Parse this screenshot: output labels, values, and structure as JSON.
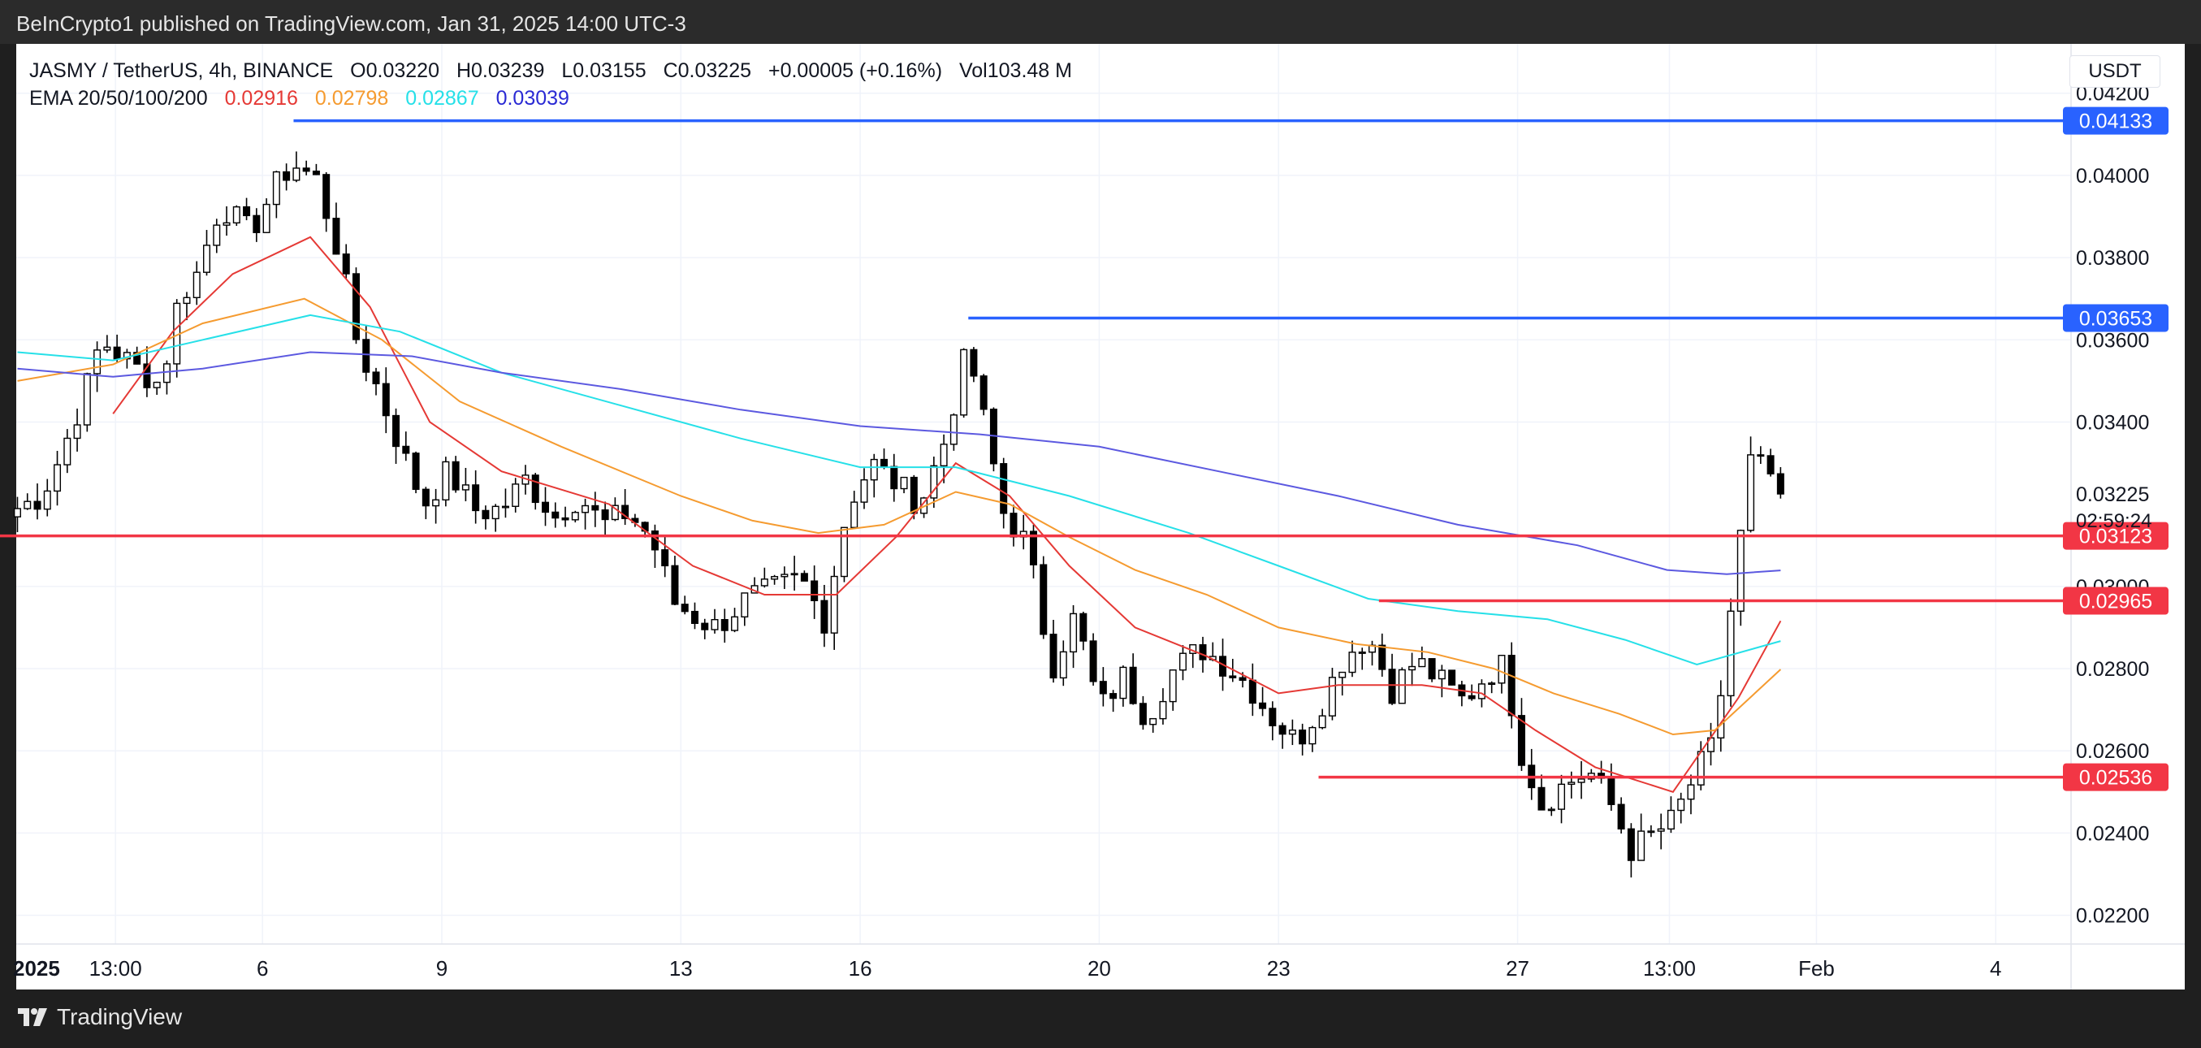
{
  "header": {
    "publisher_line": "BeInCrypto1 published on TradingView.com, Jan 31, 2025 14:00 UTC-3"
  },
  "footer": {
    "brand": "TradingView"
  },
  "legend": {
    "symbol": "JASMY / TetherUS, 4h, BINANCE",
    "open": "O0.03220",
    "high": "H0.03239",
    "low": "L0.03155",
    "close": "C0.03225",
    "change": "+0.00005 (+0.16%)",
    "volume": "Vol103.48 M",
    "ema_label": "EMA 20/50/100/200",
    "ema_values": [
      {
        "value": "0.02916",
        "color": "#e53935"
      },
      {
        "value": "0.02798",
        "color": "#f59b30"
      },
      {
        "value": "0.02867",
        "color": "#26e0e8"
      },
      {
        "value": "0.03039",
        "color": "#2a2ad4"
      }
    ]
  },
  "currency": "USDT",
  "chart_data": {
    "type": "candlestick",
    "y_range": [
      0.0213,
      0.0432
    ],
    "x_range_days": [
      1.88,
      36.26
    ],
    "y_ticks": [
      "0.04200",
      "0.04000",
      "0.03800",
      "0.03600",
      "0.03400",
      "0.03000",
      "0.02800",
      "0.02600",
      "0.02400",
      "0.02200"
    ],
    "x_ticks": [
      {
        "label": "2025",
        "day": 1
      },
      {
        "label": "13:00",
        "day": 3.54
      },
      {
        "label": "6",
        "day": 6
      },
      {
        "label": "9",
        "day": 9
      },
      {
        "label": "13",
        "day": 13
      },
      {
        "label": "16",
        "day": 16
      },
      {
        "label": "20",
        "day": 20
      },
      {
        "label": "23",
        "day": 23
      },
      {
        "label": "27",
        "day": 27
      },
      {
        "label": "13:00",
        "day": 29.54
      },
      {
        "label": "Feb",
        "day": 32
      },
      {
        "label": "4",
        "day": 35
      }
    ],
    "price_label": {
      "value": "0.03225",
      "countdown": "02:59:24",
      "color": "#131722"
    },
    "levels": [
      {
        "price": 0.04133,
        "label": "0.04133",
        "kind": "resistance",
        "color": "#2962ff",
        "from_day": 6.52
      },
      {
        "price": 0.03653,
        "label": "0.03653",
        "kind": "resistance",
        "color": "#2962ff",
        "from_day": 17.81
      },
      {
        "price": 0.03123,
        "label": "0.03123",
        "kind": "support",
        "color": "#f23645",
        "from_day": 1.5
      },
      {
        "price": 0.02965,
        "label": "0.02965",
        "kind": "support",
        "color": "#f23645",
        "from_day": 24.68
      },
      {
        "price": 0.02536,
        "label": "0.02536",
        "kind": "support",
        "color": "#f23645",
        "from_day": 23.67
      }
    ],
    "ema_series": [
      {
        "period": 20,
        "color": "#e53935",
        "points": [
          [
            3.5,
            0.0342
          ],
          [
            4.5,
            0.0362
          ],
          [
            5.5,
            0.0376
          ],
          [
            6.8,
            0.0385
          ],
          [
            7.8,
            0.0368
          ],
          [
            8.8,
            0.034
          ],
          [
            10.0,
            0.0328
          ],
          [
            11.8,
            0.032
          ],
          [
            13.2,
            0.0305
          ],
          [
            14.4,
            0.0298
          ],
          [
            15.6,
            0.0298
          ],
          [
            16.6,
            0.0312
          ],
          [
            17.6,
            0.033
          ],
          [
            18.5,
            0.0322
          ],
          [
            19.5,
            0.0305
          ],
          [
            20.6,
            0.029
          ],
          [
            21.8,
            0.0283
          ],
          [
            23.0,
            0.0274
          ],
          [
            24.0,
            0.0276
          ],
          [
            25.4,
            0.0276
          ],
          [
            26.4,
            0.0274
          ],
          [
            27.3,
            0.0265
          ],
          [
            28.3,
            0.0256
          ],
          [
            29.6,
            0.025
          ],
          [
            30.7,
            0.0273
          ],
          [
            31.4,
            0.02916
          ]
        ]
      },
      {
        "period": 50,
        "color": "#f59b30",
        "points": [
          [
            1.9,
            0.035
          ],
          [
            3.5,
            0.0354
          ],
          [
            5.0,
            0.0364
          ],
          [
            6.7,
            0.037
          ],
          [
            8.0,
            0.036
          ],
          [
            9.3,
            0.0345
          ],
          [
            11.0,
            0.0334
          ],
          [
            13.0,
            0.0322
          ],
          [
            14.2,
            0.0316
          ],
          [
            15.3,
            0.0313
          ],
          [
            16.4,
            0.0315
          ],
          [
            17.6,
            0.0323
          ],
          [
            18.5,
            0.032
          ],
          [
            19.5,
            0.0312
          ],
          [
            20.6,
            0.0304
          ],
          [
            21.8,
            0.0298
          ],
          [
            23.0,
            0.029
          ],
          [
            24.3,
            0.0286
          ],
          [
            25.5,
            0.0284
          ],
          [
            26.6,
            0.028
          ],
          [
            27.6,
            0.0274
          ],
          [
            28.7,
            0.0269
          ],
          [
            29.6,
            0.0264
          ],
          [
            30.3,
            0.0265
          ],
          [
            31.4,
            0.02798
          ]
        ]
      },
      {
        "period": 100,
        "color": "#26e0e8",
        "points": [
          [
            1.9,
            0.0357
          ],
          [
            3.5,
            0.0355
          ],
          [
            5.0,
            0.036
          ],
          [
            6.8,
            0.0366
          ],
          [
            8.3,
            0.0362
          ],
          [
            10.0,
            0.0352
          ],
          [
            12.0,
            0.0344
          ],
          [
            14.0,
            0.0336
          ],
          [
            16.0,
            0.0329
          ],
          [
            17.6,
            0.0329
          ],
          [
            19.5,
            0.0322
          ],
          [
            21.5,
            0.0313
          ],
          [
            23.0,
            0.0305
          ],
          [
            24.5,
            0.0297
          ],
          [
            26.0,
            0.0294
          ],
          [
            27.5,
            0.0292
          ],
          [
            28.8,
            0.0287
          ],
          [
            30.0,
            0.0281
          ],
          [
            31.4,
            0.02867
          ]
        ]
      },
      {
        "period": 200,
        "color": "#5c59e0",
        "points": [
          [
            1.9,
            0.0353
          ],
          [
            3.5,
            0.0351
          ],
          [
            5.0,
            0.0353
          ],
          [
            6.8,
            0.0357
          ],
          [
            8.5,
            0.0356
          ],
          [
            10.0,
            0.0352
          ],
          [
            12.0,
            0.0348
          ],
          [
            14.0,
            0.0343
          ],
          [
            16.0,
            0.0339
          ],
          [
            18.0,
            0.0337
          ],
          [
            20.0,
            0.0334
          ],
          [
            22.0,
            0.0328
          ],
          [
            24.0,
            0.0322
          ],
          [
            26.0,
            0.0315
          ],
          [
            28.0,
            0.031
          ],
          [
            29.5,
            0.0304
          ],
          [
            30.5,
            0.0303
          ],
          [
            31.4,
            0.03039
          ]
        ]
      }
    ],
    "candles_anchor_closes": [
      [
        1.9,
        0.0319
      ],
      [
        2.3,
        0.0322
      ],
      [
        2.6,
        0.0331
      ],
      [
        3.0,
        0.0346
      ],
      [
        3.3,
        0.036
      ],
      [
        3.9,
        0.0353
      ],
      [
        4.3,
        0.0349
      ],
      [
        4.6,
        0.037
      ],
      [
        4.9,
        0.0376
      ],
      [
        5.3,
        0.0393
      ],
      [
        5.8,
        0.0386
      ],
      [
        6.2,
        0.0397
      ],
      [
        6.5,
        0.0403
      ],
      [
        6.9,
        0.0399
      ],
      [
        7.3,
        0.038
      ],
      [
        7.6,
        0.0358
      ],
      [
        7.9,
        0.0349
      ],
      [
        8.3,
        0.0334
      ],
      [
        8.7,
        0.032
      ],
      [
        9.1,
        0.0328
      ],
      [
        9.6,
        0.0318
      ],
      [
        10.0,
        0.0319
      ],
      [
        10.4,
        0.0326
      ],
      [
        10.9,
        0.0317
      ],
      [
        11.3,
        0.0322
      ],
      [
        11.7,
        0.0315
      ],
      [
        12.1,
        0.0318
      ],
      [
        12.5,
        0.0312
      ],
      [
        12.9,
        0.0296
      ],
      [
        13.3,
        0.0292
      ],
      [
        13.6,
        0.029
      ],
      [
        14.1,
        0.0297
      ],
      [
        14.5,
        0.0299
      ],
      [
        15.0,
        0.0302
      ],
      [
        15.4,
        0.0292
      ],
      [
        15.8,
        0.032
      ],
      [
        16.2,
        0.033
      ],
      [
        16.6,
        0.0325
      ],
      [
        17.0,
        0.032
      ],
      [
        17.4,
        0.0335
      ],
      [
        17.8,
        0.0358
      ],
      [
        18.0,
        0.0345
      ],
      [
        18.4,
        0.0318
      ],
      [
        18.8,
        0.031
      ],
      [
        19.2,
        0.028
      ],
      [
        19.6,
        0.0293
      ],
      [
        20.0,
        0.027
      ],
      [
        20.4,
        0.0278
      ],
      [
        20.8,
        0.0268
      ],
      [
        21.2,
        0.0279
      ],
      [
        21.7,
        0.0285
      ],
      [
        22.1,
        0.0281
      ],
      [
        22.5,
        0.0276
      ],
      [
        22.9,
        0.0268
      ],
      [
        23.3,
        0.0262
      ],
      [
        23.7,
        0.0271
      ],
      [
        24.1,
        0.0283
      ],
      [
        24.5,
        0.0288
      ],
      [
        24.9,
        0.0275
      ],
      [
        25.3,
        0.0282
      ],
      [
        25.7,
        0.0277
      ],
      [
        26.1,
        0.0272
      ],
      [
        26.5,
        0.0279
      ],
      [
        26.8,
        0.0281
      ],
      [
        27.0,
        0.0262
      ],
      [
        27.4,
        0.0247
      ],
      [
        27.8,
        0.0252
      ],
      [
        28.2,
        0.0255
      ],
      [
        28.6,
        0.0246
      ],
      [
        28.9,
        0.0236
      ],
      [
        29.3,
        0.024
      ],
      [
        29.6,
        0.0243
      ],
      [
        30.0,
        0.0255
      ],
      [
        30.3,
        0.0262
      ],
      [
        30.6,
        0.0298
      ],
      [
        30.9,
        0.033
      ],
      [
        31.2,
        0.0328
      ],
      [
        31.4,
        0.03225
      ]
    ]
  }
}
